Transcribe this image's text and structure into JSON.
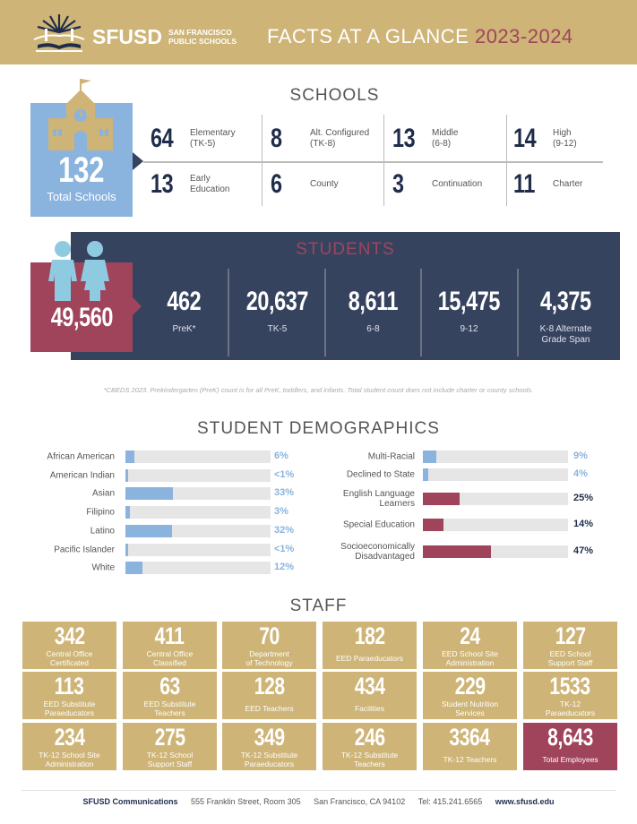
{
  "header": {
    "logo_text": "SFUSD",
    "logo_sub_1": "SAN FRANCISCO",
    "logo_sub_2": "PUBLIC SCHOOLS",
    "title": "FACTS AT A GLANCE",
    "year": "2023-2024"
  },
  "colors": {
    "gold": "#ceb477",
    "navy": "#36435f",
    "red": "#a0445c",
    "blue": "#8ab3de",
    "dark": "#1f2d4b"
  },
  "schools": {
    "heading": "SCHOOLS",
    "total": "132",
    "total_label": "Total Schools",
    "items": [
      {
        "value": "64",
        "label": "Elementary\n(TK-5)"
      },
      {
        "value": "8",
        "label": "Alt. Configured\n(TK-8)"
      },
      {
        "value": "13",
        "label": "Middle\n(6-8)"
      },
      {
        "value": "14",
        "label": "High\n(9-12)"
      },
      {
        "value": "13",
        "label": "Early\nEducation"
      },
      {
        "value": "6",
        "label": "County"
      },
      {
        "value": "3",
        "label": "Continuation"
      },
      {
        "value": "11",
        "label": "Charter"
      }
    ]
  },
  "students": {
    "heading": "STUDENTS",
    "total": "49,560",
    "items": [
      {
        "value": "462",
        "label": "PreK*"
      },
      {
        "value": "20,637",
        "label": "TK-5"
      },
      {
        "value": "8,611",
        "label": "6-8"
      },
      {
        "value": "15,475",
        "label": "9-12"
      },
      {
        "value": "4,375",
        "label": "K-8 Alternate\nGrade Span"
      }
    ],
    "footnote": "*CBEDS 2023. Prekindergarten (PreK) count is for all PreK, toddlers, and infants. Total student count does not include charter or county schools."
  },
  "demographics": {
    "heading": "STUDENT DEMOGRAPHICS",
    "left": [
      {
        "label": "African American",
        "pct": "6%",
        "value": 6
      },
      {
        "label": "American Indian",
        "pct": "<1%",
        "value": 0.8
      },
      {
        "label": "Asian",
        "pct": "33%",
        "value": 33
      },
      {
        "label": "Filipino",
        "pct": "3%",
        "value": 3
      },
      {
        "label": "Latino",
        "pct": "32%",
        "value": 32
      },
      {
        "label": "Pacific Islander",
        "pct": "<1%",
        "value": 0.8
      },
      {
        "label": "White",
        "pct": "12%",
        "value": 12
      }
    ],
    "right": [
      {
        "label": "Multi-Racial",
        "pct": "9%",
        "value": 9,
        "kind": "blue"
      },
      {
        "label": "Declined to State",
        "pct": "4%",
        "value": 4,
        "kind": "blue"
      },
      {
        "label": "English Language\nLearners",
        "pct": "25%",
        "value": 25,
        "kind": "red"
      },
      {
        "label": "Special Education",
        "pct": "14%",
        "value": 14,
        "kind": "red"
      },
      {
        "label": "Socioeconomically\nDisadvantaged",
        "pct": "47%",
        "value": 47,
        "kind": "red"
      }
    ]
  },
  "staff": {
    "heading": "STAFF",
    "items": [
      {
        "value": "342",
        "label": "Central Office\nCertificated"
      },
      {
        "value": "411",
        "label": "Central Office\nClassified"
      },
      {
        "value": "70",
        "label": "Department\nof Technology"
      },
      {
        "value": "182",
        "label": "EED Paraeducators"
      },
      {
        "value": "24",
        "label": "EED School Site\nAdministration"
      },
      {
        "value": "127",
        "label": "EED School\nSupport Staff"
      },
      {
        "value": "113",
        "label": "EED Substitute\nParaeducators"
      },
      {
        "value": "63",
        "label": "EED Substitute\nTeachers"
      },
      {
        "value": "128",
        "label": "EED Teachers"
      },
      {
        "value": "434",
        "label": "Facilities"
      },
      {
        "value": "229",
        "label": "Student Nutrition\nServices"
      },
      {
        "value": "1533",
        "label": "TK-12\nParaeducators"
      },
      {
        "value": "234",
        "label": "TK-12 School Site\nAdministration"
      },
      {
        "value": "275",
        "label": "TK-12 School\nSupport Staff"
      },
      {
        "value": "349",
        "label": "TK-12 Substitute\nParaeducators"
      },
      {
        "value": "246",
        "label": "TK-12 Substitute\nTeachers"
      },
      {
        "value": "3364",
        "label": "TK-12 Teachers"
      },
      {
        "value": "8,643",
        "label": "Total Employees",
        "highlight": true
      }
    ]
  },
  "footer": {
    "org": "SFUSD Communications",
    "address": "555 Franklin Street, Room 305",
    "city": "San Francisco, CA 94102",
    "phone": "Tel: 415.241.6565",
    "web": "www.sfusd.edu"
  }
}
